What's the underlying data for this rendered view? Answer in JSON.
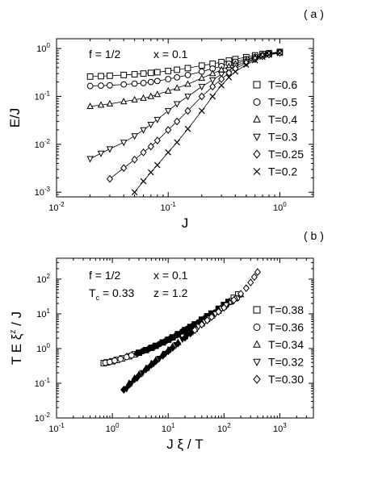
{
  "chart_data": [
    {
      "type": "scatter",
      "panel_label": "( a )",
      "annotation": [
        "f = 1/2",
        "x = 0.1"
      ],
      "xlabel": "J",
      "ylabel": "E/J",
      "xscale": "log",
      "yscale": "log",
      "xlim": [
        0.01,
        2
      ],
      "ylim": [
        0.0008,
        1.6
      ],
      "x_ticks": [
        "10",
        "10",
        "10"
      ],
      "x_tick_exps": [
        "-2",
        "-1",
        "0"
      ],
      "y_ticks": [
        "10",
        "10",
        "10",
        "10"
      ],
      "y_tick_exps": [
        "-3",
        "-2",
        "-1",
        "0"
      ],
      "legend_position": "right",
      "series": [
        {
          "name": "T=0.6",
          "marker": "square",
          "x": [
            0.02,
            0.025,
            0.03,
            0.04,
            0.05,
            0.06,
            0.07,
            0.08,
            0.1,
            0.12,
            0.15,
            0.2,
            0.25,
            0.3,
            0.35,
            0.4,
            0.5,
            0.6,
            0.7,
            0.8,
            1.0
          ],
          "y": [
            0.26,
            0.265,
            0.27,
            0.28,
            0.29,
            0.3,
            0.31,
            0.32,
            0.34,
            0.36,
            0.39,
            0.44,
            0.48,
            0.52,
            0.56,
            0.6,
            0.66,
            0.72,
            0.77,
            0.8,
            0.85
          ]
        },
        {
          "name": "T=0.5",
          "marker": "circle",
          "x": [
            0.02,
            0.025,
            0.03,
            0.04,
            0.05,
            0.06,
            0.07,
            0.08,
            0.1,
            0.12,
            0.15,
            0.2,
            0.25,
            0.3,
            0.35,
            0.4,
            0.5,
            0.6,
            0.7,
            0.8,
            1.0
          ],
          "y": [
            0.165,
            0.168,
            0.17,
            0.178,
            0.185,
            0.19,
            0.2,
            0.21,
            0.23,
            0.25,
            0.28,
            0.33,
            0.38,
            0.43,
            0.48,
            0.53,
            0.6,
            0.67,
            0.73,
            0.78,
            0.84
          ]
        },
        {
          "name": "T=0.4",
          "marker": "triangle-up",
          "x": [
            0.02,
            0.025,
            0.03,
            0.04,
            0.05,
            0.06,
            0.07,
            0.08,
            0.1,
            0.12,
            0.15,
            0.2,
            0.25,
            0.3,
            0.35,
            0.4,
            0.5,
            0.6,
            0.7,
            0.8,
            1.0
          ],
          "y": [
            0.062,
            0.066,
            0.07,
            0.078,
            0.085,
            0.092,
            0.1,
            0.11,
            0.13,
            0.15,
            0.18,
            0.24,
            0.3,
            0.36,
            0.42,
            0.48,
            0.57,
            0.65,
            0.72,
            0.77,
            0.83
          ]
        },
        {
          "name": "T=0.3",
          "marker": "triangle-down",
          "x": [
            0.02,
            0.025,
            0.03,
            0.04,
            0.05,
            0.06,
            0.07,
            0.08,
            0.1,
            0.12,
            0.15,
            0.2,
            0.25,
            0.3,
            0.35,
            0.4,
            0.5,
            0.6,
            0.7,
            0.8,
            1.0
          ],
          "y": [
            0.005,
            0.0065,
            0.008,
            0.011,
            0.015,
            0.02,
            0.026,
            0.033,
            0.05,
            0.07,
            0.1,
            0.16,
            0.22,
            0.29,
            0.36,
            0.43,
            0.53,
            0.62,
            0.7,
            0.76,
            0.82
          ]
        },
        {
          "name": "T=0.25",
          "marker": "diamond",
          "x": [
            0.03,
            0.04,
            0.05,
            0.06,
            0.07,
            0.08,
            0.1,
            0.12,
            0.15,
            0.2,
            0.25,
            0.3,
            0.35,
            0.4,
            0.5,
            0.6,
            0.7,
            0.8,
            1.0
          ],
          "y": [
            0.0019,
            0.0032,
            0.0048,
            0.0068,
            0.009,
            0.012,
            0.02,
            0.03,
            0.05,
            0.1,
            0.16,
            0.23,
            0.31,
            0.38,
            0.5,
            0.6,
            0.69,
            0.75,
            0.81
          ]
        },
        {
          "name": "T=0.2",
          "marker": "x",
          "x": [
            0.05,
            0.06,
            0.07,
            0.08,
            0.1,
            0.12,
            0.15,
            0.2,
            0.25,
            0.3,
            0.35,
            0.4,
            0.5,
            0.6,
            0.7,
            0.8,
            1.0
          ],
          "y": [
            0.001,
            0.0017,
            0.0026,
            0.0037,
            0.0068,
            0.011,
            0.021,
            0.05,
            0.1,
            0.17,
            0.25,
            0.33,
            0.46,
            0.57,
            0.67,
            0.74,
            0.8
          ]
        }
      ]
    },
    {
      "type": "scatter",
      "panel_label": "( b )",
      "annotation": [
        "f = 1/2",
        "x = 0.1"
      ],
      "annotation2": [
        "T",
        "c",
        " = 0.33",
        "z = 1.2"
      ],
      "xlabel": "J ξ / T",
      "ylabel_parts": [
        "T E ξ",
        "z",
        " / J"
      ],
      "xscale": "log",
      "yscale": "log",
      "xlim": [
        0.1,
        4000
      ],
      "ylim": [
        0.01,
        400
      ],
      "x_ticks": [
        "10",
        "10",
        "10",
        "10",
        "10"
      ],
      "x_tick_exps": [
        "-1",
        "0",
        "1",
        "2",
        "3"
      ],
      "y_ticks": [
        "10",
        "10",
        "10",
        "10",
        "10"
      ],
      "y_tick_exps": [
        "-2",
        "-1",
        "0",
        "1",
        "2"
      ],
      "legend_position": "right",
      "series": [
        {
          "name": "T=0.38",
          "marker": "square",
          "x": [
            0.7,
            0.8,
            1.0,
            1.2,
            1.5,
            2.0,
            2.5,
            3,
            4,
            5,
            6,
            8,
            10,
            12,
            15,
            20,
            25,
            30,
            40,
            50,
            60,
            80,
            100,
            120,
            150,
            180
          ],
          "y": [
            0.38,
            0.4,
            0.43,
            0.47,
            0.52,
            0.6,
            0.68,
            0.76,
            0.9,
            1.05,
            1.2,
            1.5,
            1.8,
            2.1,
            2.6,
            3.4,
            4.2,
            5.0,
            6.8,
            8.5,
            10.2,
            14,
            18,
            22,
            29,
            36
          ]
        },
        {
          "name": "T=0.36",
          "marker": "circle",
          "x": [
            0.75,
            0.9,
            1.1,
            1.4,
            1.8,
            2.2,
            2.8,
            3.5,
            4.5,
            5.5,
            7,
            9,
            11,
            14,
            18,
            22,
            28,
            35,
            45,
            55,
            70,
            90,
            110,
            140,
            170
          ],
          "y": [
            0.39,
            0.41,
            0.45,
            0.5,
            0.57,
            0.64,
            0.73,
            0.84,
            0.98,
            1.12,
            1.35,
            1.65,
            1.95,
            2.4,
            3.1,
            3.7,
            4.6,
            5.7,
            7.3,
            8.8,
            11,
            14.5,
            18,
            23,
            28
          ]
        },
        {
          "name": "T=0.34",
          "marker": "triangle-up",
          "x": [
            2.0,
            2.5,
            3,
            4,
            5,
            6,
            8,
            10,
            12,
            15,
            20,
            25,
            30,
            40,
            50,
            60,
            80,
            100,
            130,
            160,
            200
          ],
          "y": [
            0.1,
            0.14,
            0.18,
            0.27,
            0.37,
            0.47,
            0.68,
            0.9,
            1.15,
            1.5,
            2.2,
            2.9,
            3.6,
            5.2,
            6.9,
            8.6,
            12,
            16,
            22,
            28,
            36
          ]
        },
        {
          "name": "T=0.32",
          "marker": "triangle-down",
          "x": [
            1.8,
            2.2,
            2.8,
            3.5,
            4.5,
            5.5,
            7,
            9,
            11,
            14,
            18,
            22,
            28,
            35,
            45,
            55,
            70,
            90,
            110,
            140
          ],
          "y": [
            0.07,
            0.1,
            0.14,
            0.2,
            0.28,
            0.37,
            0.52,
            0.72,
            0.95,
            1.3,
            1.85,
            2.4,
            3.3,
            4.3,
            5.9,
            7.5,
            10,
            14,
            18,
            24
          ]
        },
        {
          "name": "T=0.30",
          "marker": "diamond",
          "x": [
            1.6,
            2.0,
            2.5,
            3,
            4,
            5,
            6,
            8,
            10,
            12,
            15,
            20,
            25,
            30,
            40,
            50,
            60,
            80,
            100,
            150,
            200,
            250,
            300,
            350,
            400
          ],
          "y": [
            0.065,
            0.09,
            0.13,
            0.17,
            0.25,
            0.34,
            0.43,
            0.62,
            0.83,
            1.05,
            1.4,
            2.05,
            2.7,
            3.4,
            4.9,
            6.5,
            8.1,
            11.5,
            15,
            25,
            38,
            55,
            80,
            115,
            160
          ]
        }
      ]
    }
  ]
}
